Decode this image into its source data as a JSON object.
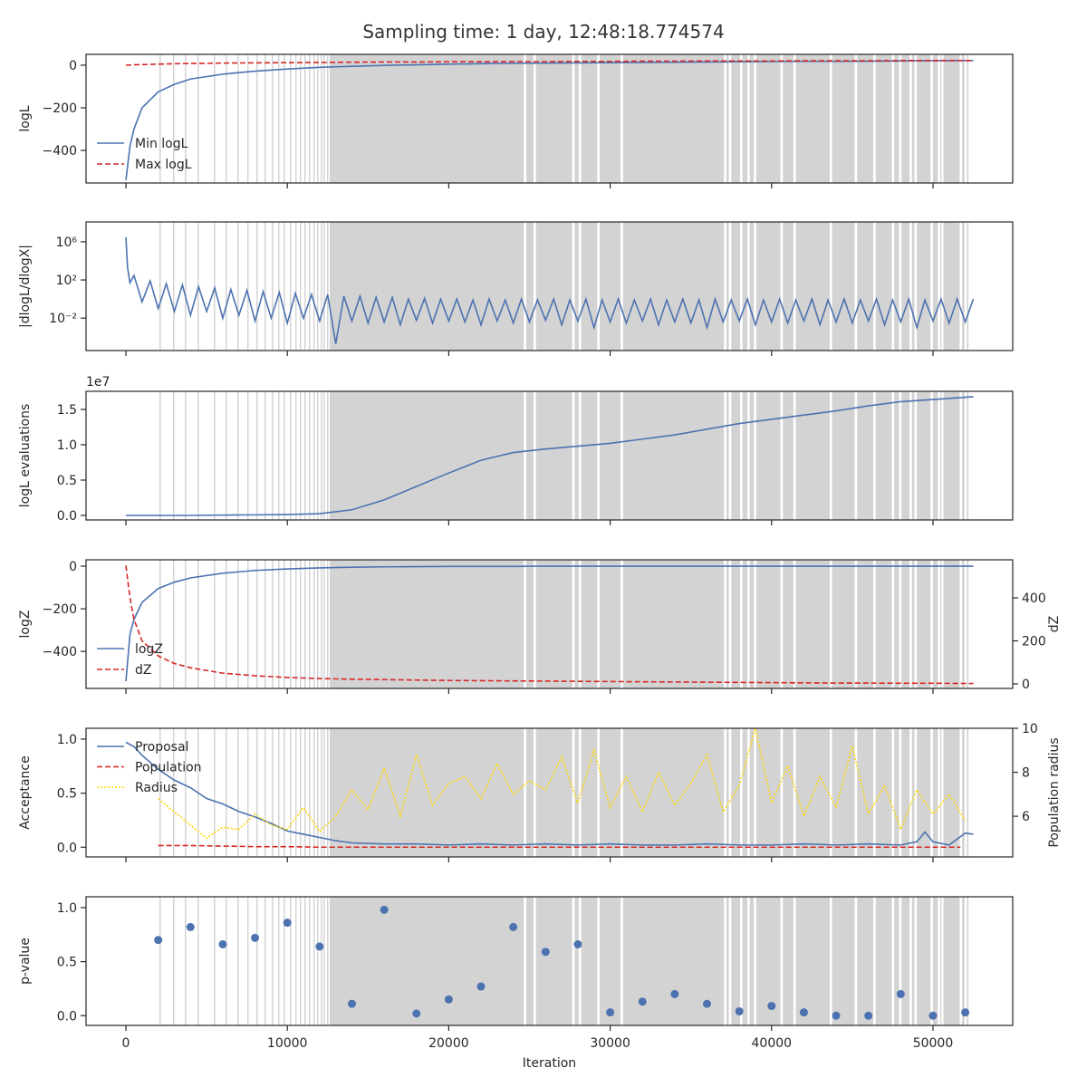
{
  "title": "Sampling time: 1 day, 12:48:18.774574",
  "shaded_spans": [
    [
      2076,
      2160
    ],
    [
      2918,
      3000
    ],
    [
      3648,
      3730
    ],
    [
      4433,
      4515
    ],
    [
      5443,
      5525
    ],
    [
      6173,
      6255
    ],
    [
      6902,
      6985
    ],
    [
      7520,
      7600
    ],
    [
      8081,
      8160
    ],
    [
      8586,
      8670
    ],
    [
      9035,
      9115
    ],
    [
      9428,
      9510
    ],
    [
      9764,
      9845
    ],
    [
      10157,
      10240
    ],
    [
      10494,
      10575
    ],
    [
      10774,
      10855
    ],
    [
      11055,
      11135
    ],
    [
      11336,
      11415
    ],
    [
      11616,
      11695
    ],
    [
      11841,
      11920
    ],
    [
      12066,
      12145
    ],
    [
      12234,
      12315
    ],
    [
      12458,
      12540
    ],
    [
      12626,
      24650
    ],
    [
      24800,
      25250
    ],
    [
      25400,
      27650
    ],
    [
      27800,
      28050
    ],
    [
      28200,
      29200
    ],
    [
      29350,
      30650
    ],
    [
      30800,
      37050
    ],
    [
      37200,
      37350
    ],
    [
      37500,
      38050
    ],
    [
      38200,
      38500
    ],
    [
      38650,
      38900
    ],
    [
      39050,
      40550
    ],
    [
      40700,
      41350
    ],
    [
      41500,
      43600
    ],
    [
      43750,
      45150
    ],
    [
      45300,
      46300
    ],
    [
      46450,
      47450
    ],
    [
      47600,
      47900
    ],
    [
      48050,
      48550
    ],
    [
      48700,
      48850
    ],
    [
      49000,
      49850
    ],
    [
      50000,
      50300
    ],
    [
      50450,
      50500
    ],
    [
      50650,
      51650
    ],
    [
      51800,
      51950
    ],
    [
      52100,
      52200
    ]
  ],
  "chart_data": [
    {
      "type": "line",
      "ylabel": "logL",
      "legend": "lower left",
      "xlim": [
        -2470,
        54940
      ],
      "xticks": [
        0,
        10000,
        20000,
        30000,
        40000,
        50000
      ],
      "ylim": [
        -553,
        51
      ],
      "yticks": [
        {
          "value": -400,
          "label": "−400"
        },
        {
          "value": -200,
          "label": "−200"
        },
        0
      ],
      "x": [
        0,
        250,
        500,
        1000,
        2000,
        3000,
        4000,
        6000,
        8000,
        10000,
        12000,
        14000,
        16000,
        18000,
        20000,
        22000,
        24000,
        26000,
        28000,
        30000,
        32000,
        34000,
        36000,
        38000,
        40000,
        42000,
        44000,
        46000,
        48000,
        50000,
        52500
      ],
      "series": [
        {
          "name": "Min logL",
          "color": "#4c72b0",
          "dash": "solid",
          "values": [
            -540,
            -380,
            -300,
            -200,
            -125,
            -90,
            -65,
            -42,
            -28,
            -18,
            -10,
            -5,
            -1,
            2,
            5,
            7,
            9,
            10,
            11,
            12,
            13,
            14,
            15,
            16,
            17,
            18,
            18,
            19,
            20,
            21,
            22
          ]
        },
        {
          "name": "Max logL",
          "color": "#d62728",
          "dash": "dashed",
          "values": [
            0,
            1,
            2,
            3,
            5,
            7,
            8,
            10,
            11,
            12,
            13,
            14,
            15,
            15,
            16,
            16,
            17,
            17,
            18,
            18,
            19,
            19,
            20,
            20,
            20,
            21,
            21,
            21,
            22,
            22,
            22
          ]
        }
      ]
    },
    {
      "type": "line",
      "ylabel": "|dlogL/dlogX|",
      "ylog": true,
      "xlim": [
        -2470,
        54940
      ],
      "xticks": [
        0,
        10000,
        20000,
        30000,
        40000,
        50000
      ],
      "ylim": [
        4e-06,
        120000000
      ],
      "yticks": [
        {
          "value": 0.01,
          "label": "10⁻²"
        },
        {
          "value": 100,
          "label": "10²"
        },
        {
          "value": 1000000,
          "label": "10⁶"
        }
      ],
      "x": [
        0,
        100,
        250,
        500,
        1000,
        1500,
        2000,
        2500,
        3000,
        3500,
        4000,
        4500,
        5000,
        5500,
        6000,
        6500,
        7000,
        7500,
        8000,
        8500,
        9000,
        9500,
        10000,
        10500,
        11000,
        11500,
        12000,
        12500,
        13000,
        13500,
        14000,
        14500,
        15000,
        15500,
        16000,
        16500,
        17000,
        17500,
        18000,
        18500,
        19000,
        19500,
        20000,
        20500,
        21000,
        21500,
        22000,
        22500,
        23000,
        23500,
        24000,
        24500,
        25000,
        25500,
        26000,
        26500,
        27000,
        27500,
        28000,
        28500,
        29000,
        29500,
        30000,
        30500,
        31000,
        31500,
        32000,
        32500,
        33000,
        33500,
        34000,
        34500,
        35000,
        35500,
        36000,
        36500,
        37000,
        37500,
        38000,
        38500,
        39000,
        39500,
        40000,
        40500,
        41000,
        41500,
        42000,
        42500,
        43000,
        43500,
        44000,
        44500,
        45000,
        45500,
        46000,
        46500,
        47000,
        47500,
        48000,
        48500,
        49000,
        49500,
        50000,
        50500,
        51000,
        51500,
        52000,
        52500
      ],
      "series": [
        {
          "color": "#4c72b0",
          "dash": "solid",
          "values": [
            3000000,
            2000,
            50,
            300,
            0.5,
            80,
            0.1,
            40,
            0.05,
            30,
            0.02,
            20,
            0.05,
            15,
            0.01,
            10,
            0.02,
            8,
            0.005,
            6,
            0.01,
            5,
            0.003,
            4,
            0.01,
            3,
            0.005,
            3,
            2e-05,
            2,
            0.005,
            2,
            0.003,
            1.5,
            0.004,
            1.5,
            0.002,
            1,
            0.006,
            1.2,
            0.003,
            1,
            0.005,
            1,
            0.004,
            0.8,
            0.002,
            1,
            0.005,
            0.8,
            0.003,
            1,
            0.004,
            0.8,
            0.006,
            1,
            0.002,
            0.8,
            0.005,
            1,
            0.001,
            0.8,
            0.004,
            1,
            0.003,
            0.8,
            0.005,
            1,
            0.002,
            0.8,
            0.004,
            1,
            0.003,
            0.8,
            0.001,
            1,
            0.004,
            0.8,
            0.005,
            1,
            0.002,
            0.8,
            0.004,
            1,
            0.003,
            0.8,
            0.005,
            1,
            0.002,
            0.8,
            0.004,
            1,
            0.003,
            0.8,
            0.005,
            1,
            0.002,
            0.8,
            0.004,
            1,
            0.001,
            0.8,
            0.005,
            1,
            0.003,
            1,
            0.004,
            1
          ]
        }
      ]
    },
    {
      "type": "line",
      "ylabel": "logL evaluations",
      "offset_label": "1e7",
      "xlim": [
        -2470,
        54940
      ],
      "xticks": [
        0,
        10000,
        20000,
        30000,
        40000,
        50000
      ],
      "ylim": [
        -0.064,
        1.756
      ],
      "yticks": [
        {
          "value": 0,
          "label": "0.0"
        },
        {
          "value": 0.5,
          "label": "0.5"
        },
        {
          "value": 1,
          "label": "1.0"
        },
        {
          "value": 1.5,
          "label": "1.5"
        }
      ],
      "x": [
        0,
        250,
        500,
        1000,
        2000,
        3000,
        4000,
        6000,
        8000,
        10000,
        12000,
        14000,
        16000,
        18000,
        20000,
        22000,
        24000,
        26000,
        28000,
        30000,
        32000,
        34000,
        36000,
        38000,
        40000,
        42000,
        44000,
        46000,
        48000,
        50000,
        52500
      ],
      "series": [
        {
          "color": "#4c72b0",
          "dash": "solid",
          "values": [
            0,
            0,
            0,
            0,
            0,
            0,
            0,
            0.005,
            0.008,
            0.012,
            0.025,
            0.08,
            0.22,
            0.41,
            0.6,
            0.78,
            0.89,
            0.94,
            0.98,
            1.02,
            1.08,
            1.14,
            1.22,
            1.3,
            1.36,
            1.42,
            1.48,
            1.55,
            1.61,
            1.64,
            1.68
          ]
        }
      ]
    },
    {
      "type": "line",
      "ylabel": "logZ",
      "y2label": "dZ",
      "legend": "lower left",
      "xlim": [
        -2470,
        54940
      ],
      "xticks": [
        0,
        10000,
        20000,
        30000,
        40000,
        50000
      ],
      "ylim": [
        -574,
        30
      ],
      "yticks": [
        {
          "value": -400,
          "label": "−400"
        },
        {
          "value": -200,
          "label": "−200"
        },
        0
      ],
      "y2lim": [
        -21,
        577
      ],
      "y2ticks": [
        0,
        200,
        400
      ],
      "x": [
        0,
        250,
        500,
        1000,
        2000,
        3000,
        4000,
        6000,
        8000,
        10000,
        12000,
        14000,
        16000,
        18000,
        20000,
        22000,
        24000,
        26000,
        28000,
        30000,
        32000,
        34000,
        36000,
        38000,
        40000,
        42000,
        44000,
        46000,
        48000,
        50000,
        52500
      ],
      "series": [
        {
          "name": "logZ",
          "color": "#4c72b0",
          "dash": "solid",
          "values": [
            -540,
            -320,
            -250,
            -170,
            -105,
            -75,
            -55,
            -33,
            -20,
            -13,
            -8,
            -5,
            -3,
            -2,
            -1,
            -1,
            -1,
            0,
            0,
            0,
            0,
            0,
            0,
            0,
            0,
            0,
            0,
            0,
            0,
            0,
            0
          ]
        },
        {
          "name": "dZ",
          "color": "#d62728",
          "dash": "dashed",
          "axis": "y2",
          "values": [
            550,
            400,
            300,
            200,
            130,
            95,
            75,
            50,
            38,
            30,
            25,
            22,
            20,
            18,
            16,
            15,
            14,
            13,
            12,
            11,
            10,
            9,
            8,
            7,
            6,
            5,
            4,
            4,
            3,
            3,
            2
          ]
        }
      ]
    },
    {
      "type": "line",
      "ylabel": "Acceptance",
      "y2label": "Population radius",
      "legend": "upper left",
      "xlim": [
        -2470,
        54940
      ],
      "xticks": [
        0,
        10000,
        20000,
        30000,
        40000,
        50000
      ],
      "ylim": [
        -0.09,
        1.1
      ],
      "yticks": [
        {
          "value": 0,
          "label": "0.0"
        },
        {
          "value": 0.5,
          "label": "0.5"
        },
        {
          "value": 1,
          "label": "1.0"
        }
      ],
      "y2lim": [
        4.15,
        10
      ],
      "y2ticks": [
        6,
        8,
        10
      ],
      "series": [
        {
          "name": "Proposal",
          "color": "#4c72b0",
          "dash": "solid",
          "x": [
            0,
            500,
            1000,
            2000,
            3000,
            4000,
            5000,
            6000,
            7000,
            8000,
            9000,
            10000,
            11000,
            12000,
            13000,
            14000,
            16000,
            18000,
            20000,
            22000,
            24000,
            26000,
            28000,
            30000,
            32000,
            34000,
            36000,
            38000,
            40000,
            42000,
            44000,
            46000,
            48000,
            49000,
            49500,
            50000,
            51000,
            52000,
            52500
          ],
          "values": [
            0.97,
            0.93,
            0.85,
            0.72,
            0.62,
            0.55,
            0.45,
            0.4,
            0.33,
            0.28,
            0.22,
            0.15,
            0.12,
            0.09,
            0.06,
            0.04,
            0.03,
            0.03,
            0.02,
            0.03,
            0.02,
            0.03,
            0.02,
            0.03,
            0.02,
            0.02,
            0.03,
            0.02,
            0.02,
            0.03,
            0.02,
            0.03,
            0.02,
            0.05,
            0.14,
            0.05,
            0.02,
            0.13,
            0.12
          ]
        },
        {
          "name": "Population",
          "color": "#d62728",
          "dash": "dashed",
          "x": [
            2000,
            4000,
            6000,
            8000,
            10000,
            12000,
            14000,
            20000,
            30000,
            40000,
            51700
          ],
          "values": [
            0.015,
            0.015,
            0.01,
            0.005,
            0.005,
            0,
            0,
            0,
            0,
            0,
            0
          ]
        },
        {
          "name": "Radius",
          "color": "#ffd700",
          "dash": "dotted",
          "axis": "y2",
          "x": [
            2000,
            3000,
            4000,
            5000,
            6000,
            7000,
            8000,
            9000,
            10000,
            11000,
            12000,
            13000,
            14000,
            15000,
            16000,
            17000,
            18000,
            19000,
            20000,
            21000,
            22000,
            23000,
            24000,
            25000,
            26000,
            27000,
            28000,
            29000,
            30000,
            31000,
            32000,
            33000,
            34000,
            35000,
            36000,
            37000,
            38000,
            39000,
            40000,
            41000,
            42000,
            43000,
            44000,
            45000,
            46000,
            47000,
            48000,
            49000,
            50000,
            51000,
            52000
          ],
          "values": [
            6.8,
            6.2,
            5.6,
            5.0,
            5.5,
            5.4,
            6.1,
            5.6,
            5.4,
            6.4,
            5.3,
            6.0,
            7.2,
            6.3,
            8.2,
            6.0,
            8.8,
            6.5,
            7.5,
            7.8,
            6.8,
            8.4,
            7.0,
            7.6,
            7.2,
            8.7,
            6.6,
            9.0,
            6.4,
            7.8,
            6.2,
            8.0,
            6.5,
            7.5,
            8.8,
            6.2,
            7.4,
            10.0,
            6.6,
            8.3,
            6.0,
            7.8,
            6.4,
            9.2,
            6.1,
            7.4,
            5.4,
            7.2,
            6.1,
            7.0,
            5.8
          ]
        }
      ]
    },
    {
      "type": "scatter",
      "ylabel": "p-value",
      "xlabel": "Iteration",
      "xlim": [
        -2470,
        54940
      ],
      "xticks": [
        0,
        10000,
        20000,
        30000,
        40000,
        50000
      ],
      "ylim": [
        -0.09,
        1.1
      ],
      "yticks": [
        {
          "value": 0,
          "label": "0.0"
        },
        {
          "value": 0.5,
          "label": "0.5"
        },
        {
          "value": 1,
          "label": "1.0"
        }
      ],
      "x": [
        2000,
        4000,
        6000,
        8000,
        10000,
        12000,
        14000,
        16000,
        18000,
        20000,
        22000,
        24000,
        26000,
        28000,
        30000,
        32000,
        34000,
        36000,
        38000,
        40000,
        42000,
        44000,
        46000,
        48000,
        50000,
        52000
      ],
      "series": [
        {
          "color": "#4c72b0",
          "values": [
            0.7,
            0.82,
            0.66,
            0.72,
            0.86,
            0.64,
            0.11,
            0.98,
            0.02,
            0.15,
            0.27,
            0.82,
            0.59,
            0.66,
            0.03,
            0.13,
            0.2,
            0.11,
            0.04,
            0.09,
            0.03,
            0,
            0,
            0.2,
            0,
            0.03
          ]
        }
      ]
    }
  ]
}
